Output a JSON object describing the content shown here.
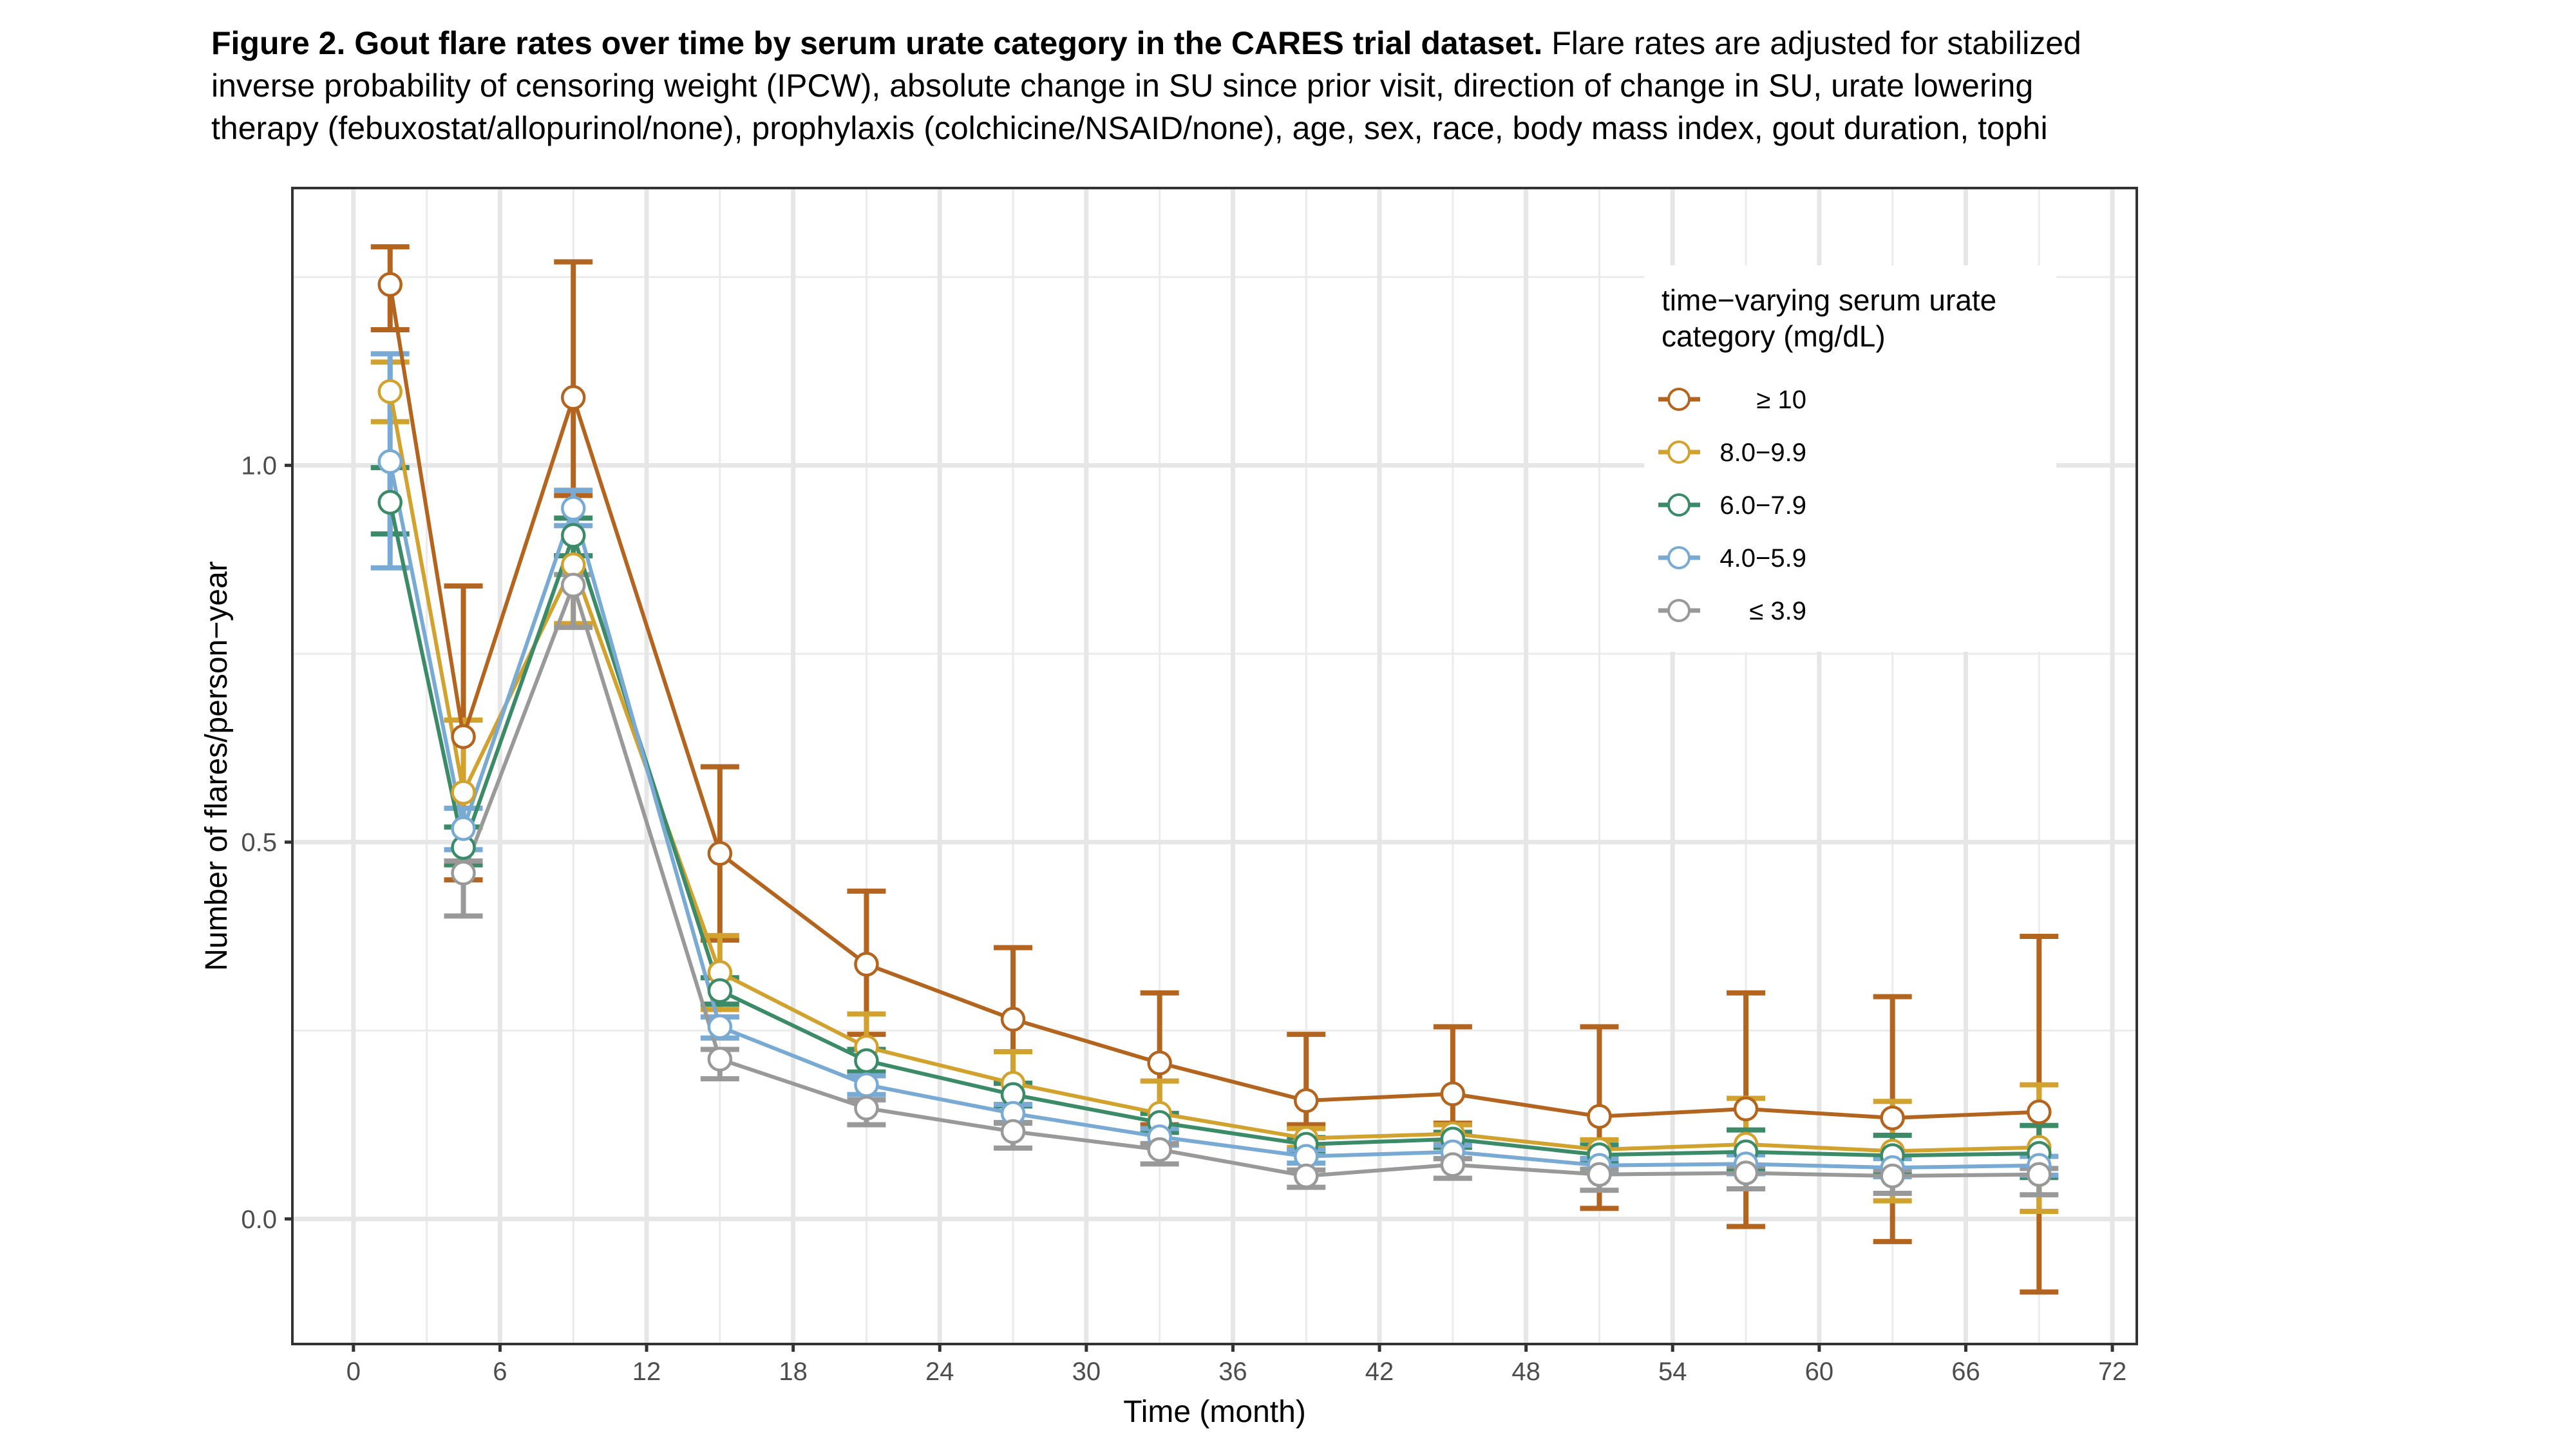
{
  "caption": {
    "bold": "Figure 2. Gout flare rates over time by serum urate category in the CARES trial dataset.",
    "line1_rest": " Flare rates are adjusted for stabilized",
    "line2": "inverse probability of censoring weight (IPCW), absolute change in SU since prior visit, direction of change in SU, urate lowering",
    "line3": "therapy (febuxostat/allopurinol/none), prophylaxis (colchicine/NSAID/none), age, sex, race, body mass index, gout duration, tophi"
  },
  "chart_data": {
    "type": "line",
    "title": "Figure 2. Gout flare rates over time by serum urate category in the CARES trial dataset.",
    "xlabel": "Time (month)",
    "ylabel": "Number of flares/person−year",
    "xlim": [
      -2.5,
      73
    ],
    "ylim": [
      -0.166,
      1.368
    ],
    "xticks": [
      0,
      6,
      12,
      18,
      24,
      30,
      36,
      42,
      48,
      54,
      60,
      66,
      72
    ],
    "xtick_labels": [
      "0",
      "6",
      "12",
      "18",
      "24",
      "30",
      "36",
      "42",
      "48",
      "54",
      "60",
      "66",
      "72"
    ],
    "yticks": [
      0.0,
      0.5,
      1.0
    ],
    "ytick_labels": [
      "0.0",
      "0.5",
      "1.0"
    ],
    "y_minor_ticks": [
      0.25,
      0.75,
      1.25
    ],
    "x_minor_ticks": [
      3,
      9,
      15,
      21,
      27,
      33,
      39,
      45,
      51,
      57,
      63,
      69
    ],
    "grid": true,
    "legend": {
      "title_line1": "time−varying serum urate",
      "title_line2": "category (mg/dL)",
      "placement": "top-right"
    },
    "series": [
      {
        "name": "≥ 10",
        "color": "#B3651F",
        "x": [
          1.5,
          4.5,
          9,
          15,
          21,
          27,
          33,
          39,
          45,
          51,
          57,
          63,
          69
        ],
        "y": [
          1.24,
          0.64,
          1.09,
          0.485,
          0.338,
          0.265,
          0.207,
          0.157,
          0.166,
          0.136,
          0.146,
          0.134,
          0.142
        ],
        "upper": [
          1.29,
          0.84,
          1.27,
          0.6,
          0.435,
          0.36,
          0.3,
          0.245,
          0.255,
          0.255,
          0.3,
          0.295,
          0.375
        ],
        "lower": [
          1.18,
          0.45,
          0.96,
          0.37,
          0.245,
          0.18,
          0.125,
          0.125,
          0.127,
          0.014,
          -0.01,
          -0.03,
          -0.097
        ]
      },
      {
        "name": "8.0−9.9",
        "color": "#D1A22E",
        "x": [
          1.5,
          4.5,
          9,
          15,
          21,
          27,
          33,
          39,
          45,
          51,
          57,
          63,
          69
        ],
        "y": [
          1.098,
          0.566,
          0.868,
          0.327,
          0.228,
          0.18,
          0.14,
          0.107,
          0.113,
          0.092,
          0.099,
          0.09,
          0.095
        ],
        "upper": [
          1.137,
          0.662,
          0.88,
          0.376,
          0.272,
          0.222,
          0.183,
          0.12,
          0.125,
          0.105,
          0.16,
          0.156,
          0.178
        ],
        "lower": [
          1.058,
          0.47,
          0.79,
          0.278,
          0.19,
          0.15,
          0.115,
          0.095,
          0.1,
          0.08,
          0.04,
          0.024,
          0.01
        ]
      },
      {
        "name": "6.0−7.9",
        "color": "#3B8A68",
        "x": [
          1.5,
          4.5,
          9,
          15,
          21,
          27,
          33,
          39,
          45,
          51,
          57,
          63,
          69
        ],
        "y": [
          0.951,
          0.493,
          0.907,
          0.303,
          0.21,
          0.165,
          0.128,
          0.099,
          0.106,
          0.085,
          0.089,
          0.084,
          0.087
        ],
        "upper": [
          0.997,
          0.52,
          0.93,
          0.32,
          0.225,
          0.18,
          0.14,
          0.108,
          0.115,
          0.098,
          0.118,
          0.111,
          0.124
        ],
        "lower": [
          0.909,
          0.47,
          0.88,
          0.285,
          0.195,
          0.15,
          0.115,
          0.09,
          0.095,
          0.075,
          0.065,
          0.06,
          0.055
        ]
      },
      {
        "name": "4.0−5.9",
        "color": "#78AAD4",
        "x": [
          1.5,
          4.5,
          9,
          15,
          21,
          27,
          33,
          39,
          45,
          51,
          57,
          63,
          69
        ],
        "y": [
          1.005,
          0.518,
          0.943,
          0.255,
          0.178,
          0.14,
          0.109,
          0.083,
          0.089,
          0.071,
          0.073,
          0.068,
          0.071
        ],
        "upper": [
          1.148,
          0.545,
          0.967,
          0.268,
          0.19,
          0.152,
          0.12,
          0.092,
          0.098,
          0.08,
          0.085,
          0.08,
          0.083
        ],
        "lower": [
          0.864,
          0.49,
          0.92,
          0.24,
          0.165,
          0.128,
          0.098,
          0.074,
          0.08,
          0.062,
          0.06,
          0.056,
          0.058
        ]
      },
      {
        "name": "≤ 3.9",
        "color": "#999999",
        "x": [
          4.5,
          9,
          15,
          21,
          27,
          33,
          39,
          45,
          51,
          57,
          63,
          69
        ],
        "y": [
          0.459,
          0.841,
          0.212,
          0.147,
          0.116,
          0.092,
          0.057,
          0.072,
          0.059,
          0.061,
          0.057,
          0.059
        ],
        "upper": [
          0.475,
          0.855,
          0.225,
          0.158,
          0.127,
          0.1,
          0.065,
          0.08,
          0.066,
          0.07,
          0.065,
          0.067
        ],
        "lower": [
          0.402,
          0.785,
          0.186,
          0.125,
          0.094,
          0.073,
          0.042,
          0.054,
          0.038,
          0.04,
          0.034,
          0.032
        ]
      }
    ]
  }
}
